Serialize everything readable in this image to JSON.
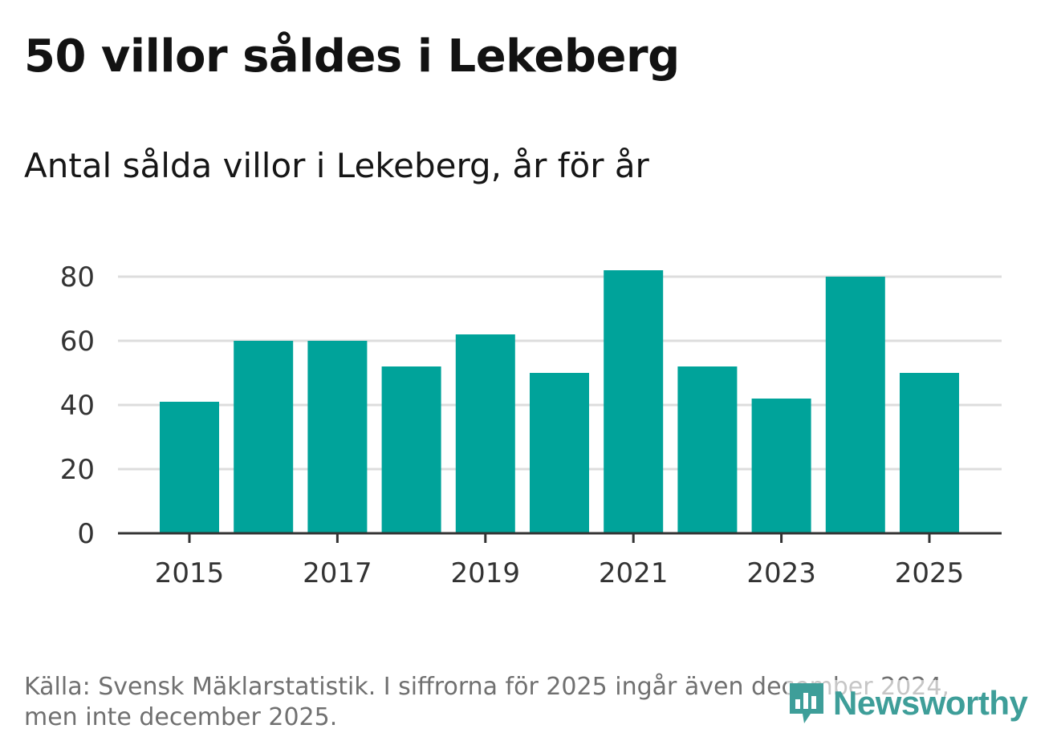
{
  "header": {
    "title": "50 villor såldes i Lekeberg",
    "subtitle": "Antal sålda villor i Lekeberg, år för år"
  },
  "footer": {
    "source": "Källa: Svensk Mäklarstatistik. I siffrorna för 2025 ingår även december 2024, men inte december 2025.",
    "brand": "Newsworthy",
    "brand_icon": "newsworthy-logo-icon"
  },
  "colors": {
    "bar": "#00a39a",
    "grid": "#dddddd",
    "axis": "#333333",
    "brand": "#3e9e99"
  },
  "chart_data": {
    "type": "bar",
    "title": "Antal sålda villor i Lekeberg, år för år",
    "categories": [
      2015,
      2016,
      2017,
      2018,
      2019,
      2020,
      2021,
      2022,
      2023,
      2024,
      2025
    ],
    "values": [
      41,
      60,
      60,
      52,
      62,
      50,
      82,
      52,
      42,
      80,
      50
    ],
    "xlabel": "",
    "ylabel": "",
    "ylim": [
      0,
      80
    ],
    "y_ticks": [
      0,
      20,
      40,
      60,
      80
    ],
    "x_tick_labels": [
      "2015",
      "2017",
      "2019",
      "2021",
      "2023",
      "2025"
    ],
    "grid": true,
    "legend": "none"
  }
}
